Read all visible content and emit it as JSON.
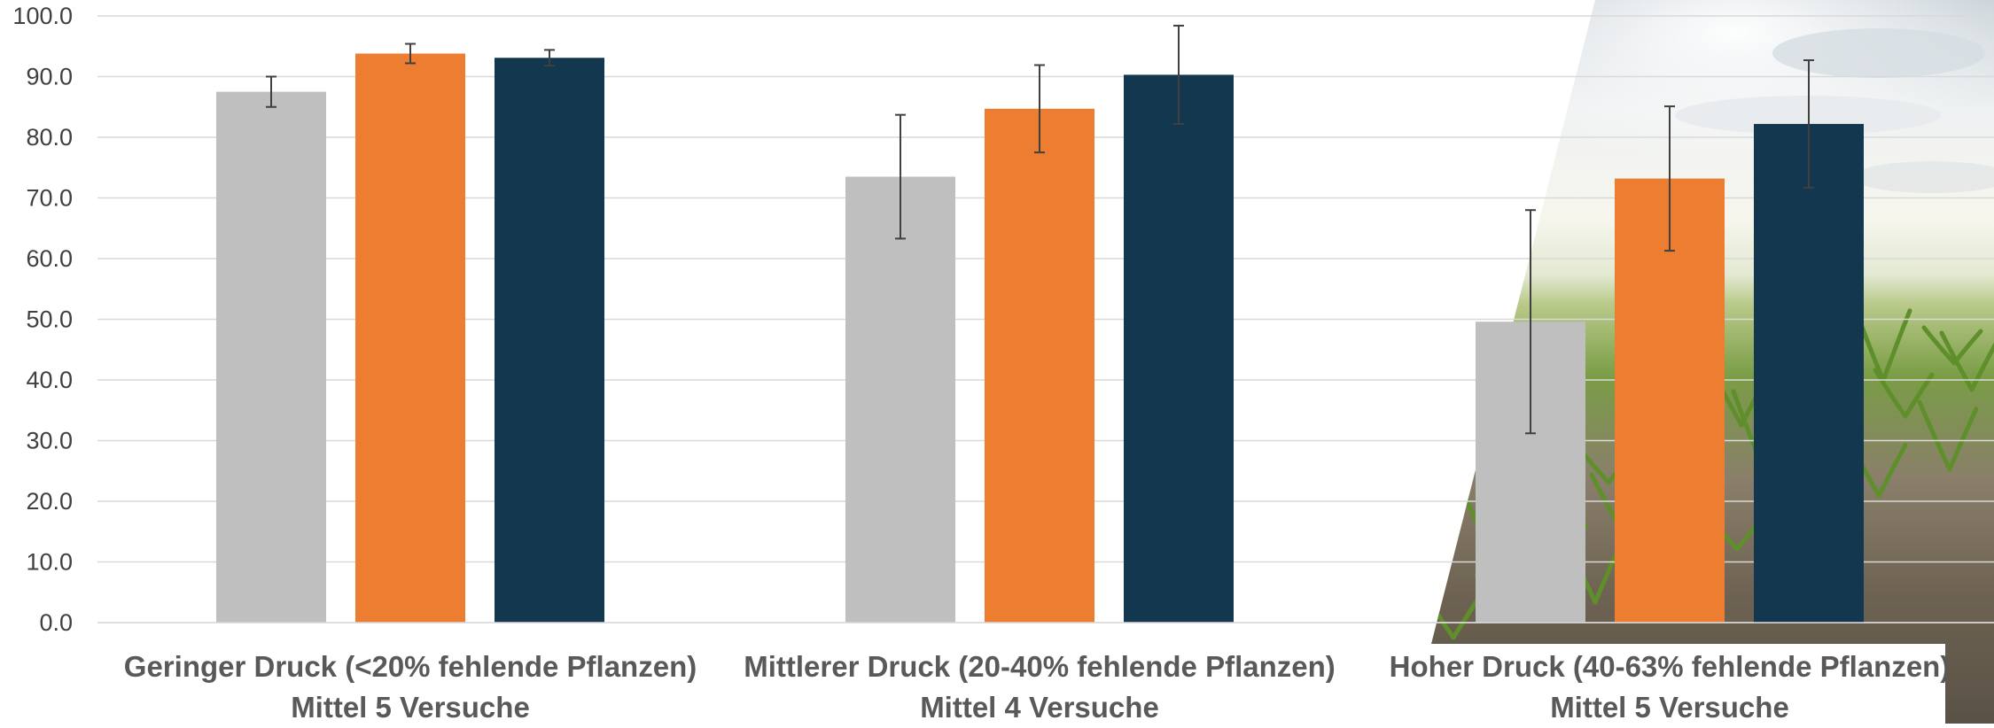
{
  "chart_data": {
    "type": "bar",
    "title": "",
    "xlabel": "",
    "ylabel": "",
    "ylim": [
      0,
      100
    ],
    "yticks": [
      "0.0",
      "10.0",
      "20.0",
      "30.0",
      "40.0",
      "50.0",
      "60.0",
      "70.0",
      "80.0",
      "90.0",
      "100.0"
    ],
    "grid": true,
    "legend": "none",
    "categories": [
      {
        "line1": "Geringer Druck (<20% fehlende Pflanzen)",
        "line2": "Mittel 5 Versuche"
      },
      {
        "line1": "Mittlerer Druck (20-40% fehlende Pflanzen)",
        "line2": "Mittel 4 Versuche"
      },
      {
        "line1": "Hoher Druck (40-63% fehlende Pflanzen)",
        "line2": "Mittel 5 Versuche"
      }
    ],
    "series": [
      {
        "color": "#bfbfbf",
        "values": [
          87.5,
          73.5,
          49.6
        ],
        "errors": [
          2.5,
          10.2,
          18.4
        ]
      },
      {
        "color": "#ed7d31",
        "values": [
          93.8,
          84.7,
          73.2
        ],
        "errors": [
          1.6,
          7.2,
          11.9
        ]
      },
      {
        "color": "#12374f",
        "values": [
          93.1,
          90.3,
          82.2
        ],
        "errors": [
          1.3,
          8.1,
          10.5
        ]
      }
    ],
    "background": "photo of young corn field under a bright sky, behind the right part of the plot"
  }
}
